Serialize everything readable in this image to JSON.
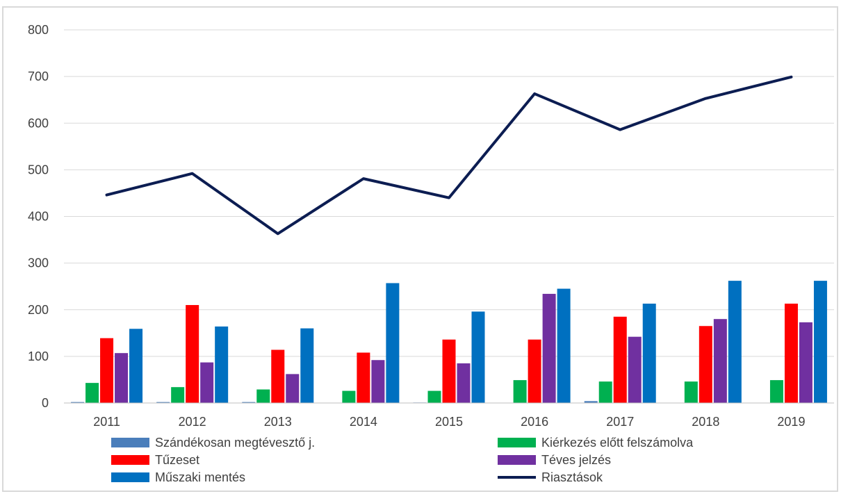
{
  "chart_data": {
    "type": "bar",
    "title": "",
    "xlabel": "",
    "ylabel": "",
    "ylim": [
      0,
      800
    ],
    "yticks": [
      "0",
      "100",
      "200",
      "300",
      "400",
      "500",
      "600",
      "700",
      "800"
    ],
    "categories": [
      "2011",
      "2012",
      "2013",
      "2014",
      "2015",
      "2016",
      "2017",
      "2018",
      "2019"
    ],
    "grid": true,
    "legend_position": "bottom",
    "series": [
      {
        "name": "Szándékosan megtévesztő j.",
        "kind": "bar",
        "color": "#4a7ebb",
        "values": [
          2,
          2,
          2,
          0,
          1,
          0,
          4,
          0,
          0
        ]
      },
      {
        "name": "Kiérkezés előtt felszámolva",
        "kind": "bar",
        "color": "#00b050",
        "values": [
          43,
          34,
          29,
          26,
          26,
          49,
          46,
          46,
          49
        ]
      },
      {
        "name": "Tűzeset",
        "kind": "bar",
        "color": "#ff0000",
        "values": [
          139,
          210,
          114,
          108,
          136,
          136,
          185,
          165,
          213
        ]
      },
      {
        "name": "Téves jelzés",
        "kind": "bar",
        "color": "#7030a0",
        "values": [
          107,
          87,
          62,
          92,
          85,
          234,
          142,
          180,
          173
        ]
      },
      {
        "name": "Műszaki mentés",
        "kind": "bar",
        "color": "#0070c0",
        "values": [
          159,
          164,
          160,
          257,
          196,
          245,
          213,
          262,
          262
        ]
      },
      {
        "name": "Riasztások",
        "kind": "line",
        "color": "#0c1d52",
        "values": [
          446,
          492,
          363,
          481,
          440,
          663,
          586,
          653,
          699
        ]
      }
    ]
  }
}
